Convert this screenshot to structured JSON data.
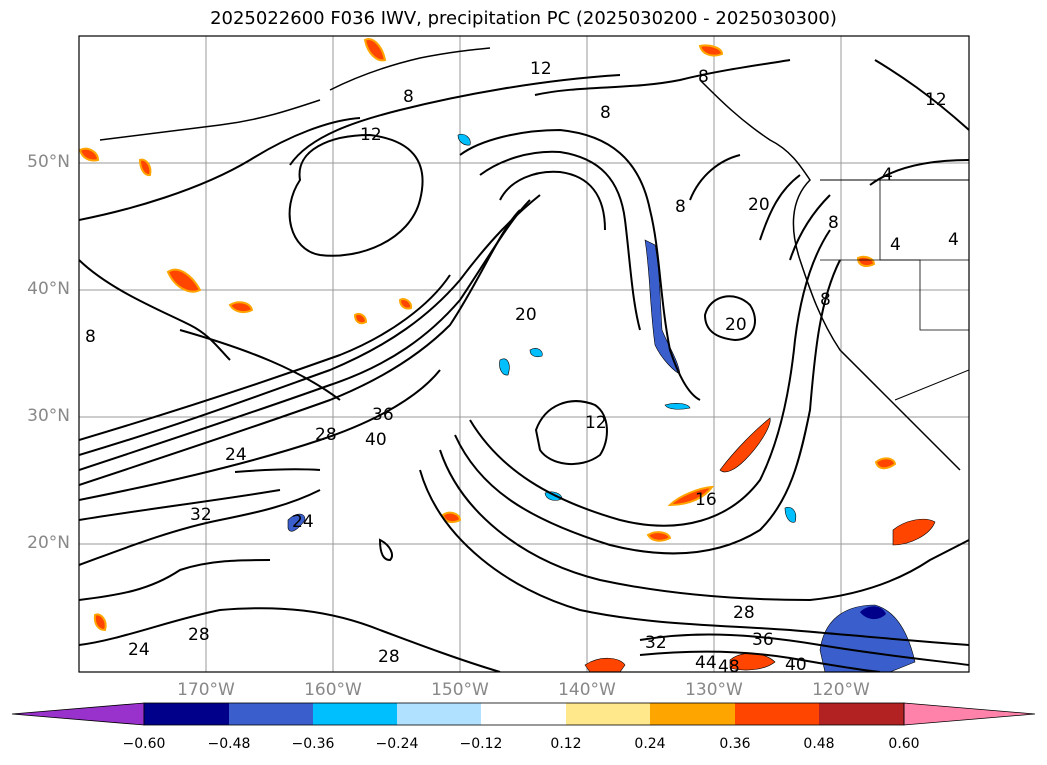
{
  "title": "2025022600 F036 IWV, precipitation PC (2025030200 - 2025030300)",
  "lat_labels": [
    "50°N",
    "40°N",
    "30°N",
    "20°N"
  ],
  "lon_labels": [
    "170°W",
    "160°W",
    "150°W",
    "140°W",
    "130°W",
    "120°W"
  ],
  "contour_labels": [
    "12",
    "8",
    "8",
    "12",
    "8",
    "12",
    "8",
    "4",
    "4",
    "4",
    "20",
    "8",
    "8",
    "20",
    "20",
    "36",
    "28",
    "40",
    "24",
    "12",
    "16",
    "32",
    "24",
    "28",
    "28",
    "36",
    "32",
    "44",
    "48",
    "40",
    "24",
    "28",
    "8"
  ],
  "colorbar": {
    "ticks": [
      "−0.60",
      "−0.48",
      "−0.36",
      "−0.24",
      "−0.12",
      "0.12",
      "0.24",
      "0.36",
      "0.48",
      "0.60"
    ],
    "colors": [
      "#9932cc",
      "#00008b",
      "#3a5fcd",
      "#00bfff",
      "#b0e2ff",
      "#ffffff",
      "#ffe78c",
      "#ffa500",
      "#ff4500",
      "#b22222",
      "#ff82ab"
    ]
  }
}
